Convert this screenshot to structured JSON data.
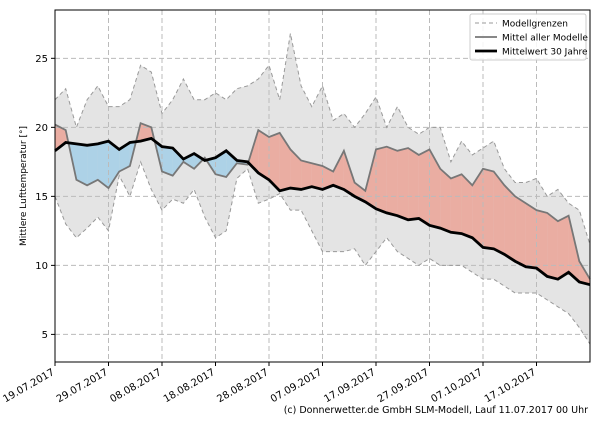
{
  "chart_data": {
    "type": "band-line",
    "ylabel": "Mittlere Lufttemperatur [°]",
    "footer": "(c) Donnerwetter.de GmbH SLM-Modell, Lauf 11.07.2017 00 Uhr",
    "x": [
      0,
      2,
      4,
      6,
      8,
      10,
      12,
      14,
      16,
      18,
      20,
      22,
      24,
      26,
      28,
      30,
      32,
      34,
      36,
      38,
      40,
      42,
      44,
      46,
      48,
      50,
      52,
      54,
      56,
      58,
      60,
      62,
      64,
      66,
      68,
      70,
      72,
      74,
      76,
      78,
      80,
      82,
      84,
      86,
      88,
      90,
      92,
      94,
      96,
      98,
      100
    ],
    "xlim": [
      0,
      100
    ],
    "xticks": [
      {
        "value": 0,
        "label": "19.07.2017"
      },
      {
        "value": 10,
        "label": "29.07.2017"
      },
      {
        "value": 20,
        "label": "08.08.2017"
      },
      {
        "value": 30,
        "label": "18.08.2017"
      },
      {
        "value": 40,
        "label": "28.08.2017"
      },
      {
        "value": 50,
        "label": "07.09.2017"
      },
      {
        "value": 60,
        "label": "17.09.2017"
      },
      {
        "value": 70,
        "label": "27.09.2017"
      },
      {
        "value": 80,
        "label": "07.10.2017"
      },
      {
        "value": 90,
        "label": "17.10.2017"
      }
    ],
    "ylim": [
      3,
      28.5
    ],
    "yticks": [
      5,
      10,
      15,
      20,
      25
    ],
    "grid": true,
    "legend": "upper right",
    "above_color": "#ef7f6c",
    "below_color": "#8fc8e8",
    "series": [
      {
        "name": "Modellgrenzen",
        "color": "#999999",
        "fill": "#e4e4e4",
        "upper": [
          22,
          22.8,
          20,
          22,
          23,
          21.5,
          21.5,
          22,
          24.5,
          24,
          21,
          22,
          23.5,
          22,
          22,
          22.5,
          22,
          22.8,
          23,
          23.5,
          24.5,
          22,
          26.8,
          23,
          21.5,
          23,
          20.5,
          21,
          20,
          21,
          22.2,
          20,
          21.5,
          20,
          19.5,
          20,
          20,
          17.5,
          19,
          18,
          18.5,
          19,
          17,
          16,
          16,
          16.3,
          15,
          15.5,
          14.5,
          14,
          11.5
        ],
        "lower": [
          15,
          13,
          12,
          12.7,
          13.5,
          12.5,
          16.5,
          15,
          17.5,
          15.5,
          14,
          14.8,
          14.5,
          15.5,
          13.5,
          12,
          12.5,
          16.3,
          17,
          14.5,
          14.8,
          15.2,
          14,
          14,
          12.5,
          11,
          11,
          11,
          11.2,
          10,
          11,
          12,
          11,
          10.5,
          10,
          10.5,
          10,
          10,
          10,
          9.5,
          9,
          9,
          8.5,
          8,
          8,
          8,
          7.5,
          7,
          6.5,
          5.5,
          4.3
        ]
      },
      {
        "name": "Mittel aller Modelle",
        "color": "#777777",
        "values": [
          20.2,
          19.8,
          16.2,
          15.8,
          16.2,
          15.6,
          16.8,
          17.2,
          20.3,
          20.0,
          16.8,
          16.5,
          17.5,
          17.0,
          17.8,
          16.6,
          16.4,
          17.4,
          17.3,
          19.8,
          19.3,
          19.6,
          18.4,
          17.6,
          17.4,
          17.2,
          16.8,
          18.3,
          16.0,
          15.4,
          18.4,
          18.6,
          18.3,
          18.5,
          18.0,
          18.4,
          17.0,
          16.3,
          16.6,
          15.8,
          17.0,
          16.8,
          15.8,
          15.0,
          14.5,
          14.0,
          13.8,
          13.2,
          13.6,
          10.3,
          9.0
        ]
      },
      {
        "name": "Mittelwert 30 Jahre",
        "color": "#000000",
        "values": [
          18.3,
          18.9,
          18.8,
          18.7,
          18.8,
          19.0,
          18.4,
          18.9,
          19.0,
          19.2,
          18.6,
          18.5,
          17.7,
          18.1,
          17.6,
          17.8,
          18.3,
          17.6,
          17.5,
          16.7,
          16.2,
          15.4,
          15.6,
          15.5,
          15.7,
          15.5,
          15.8,
          15.5,
          15.0,
          14.6,
          14.1,
          13.8,
          13.6,
          13.3,
          13.4,
          12.9,
          12.7,
          12.4,
          12.3,
          12.0,
          11.3,
          11.2,
          10.8,
          10.3,
          9.9,
          9.8,
          9.2,
          9.0,
          9.5,
          8.8,
          8.6
        ]
      }
    ]
  }
}
